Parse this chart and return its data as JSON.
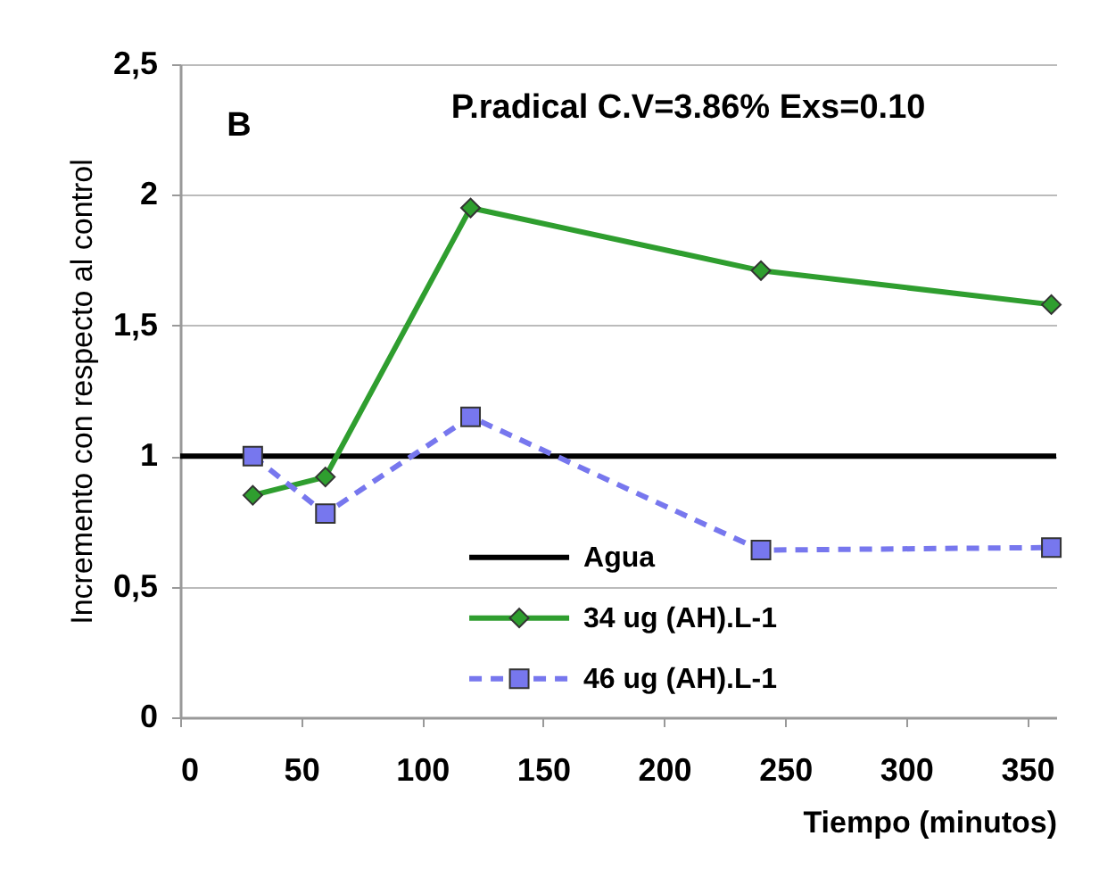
{
  "chart_data": {
    "type": "line",
    "title": "P.radical C.V=3.86% Exs=0.10",
    "annotations": [
      "B"
    ],
    "xlabel": "Tiempo (minutos)",
    "ylabel": "Incremento con respecto al control",
    "xlim": [
      0,
      362
    ],
    "xticks": [
      0,
      50,
      100,
      150,
      200,
      250,
      300,
      350
    ],
    "ylim": [
      0,
      2.5
    ],
    "yticks": [
      0,
      {
        "value": 0.5,
        "label": "0,5"
      },
      1,
      {
        "value": 1.5,
        "label": "1,5"
      },
      2,
      {
        "value": 2.5,
        "label": "2,5"
      }
    ],
    "grid": "y",
    "legend": "bottom",
    "series": [
      {
        "name": "Agua",
        "color": "#000000",
        "x": [
          0,
          362
        ],
        "values": [
          1,
          1
        ],
        "line_style": "solid",
        "marker": "none"
      },
      {
        "name": "34 ug (AH).L-1",
        "color": "#2f9e2f",
        "x": [
          30,
          60,
          120,
          240,
          360
        ],
        "values": [
          0.85,
          0.92,
          1.95,
          1.71,
          1.58
        ],
        "line_style": "solid",
        "marker": "diamond"
      },
      {
        "name": "46 ug (AH).L-1",
        "color": "#7777ee",
        "x": [
          30,
          60,
          120,
          240,
          360
        ],
        "values": [
          1.0,
          0.78,
          1.15,
          0.64,
          0.65
        ],
        "line_style": "dashed",
        "marker": "square"
      }
    ]
  }
}
